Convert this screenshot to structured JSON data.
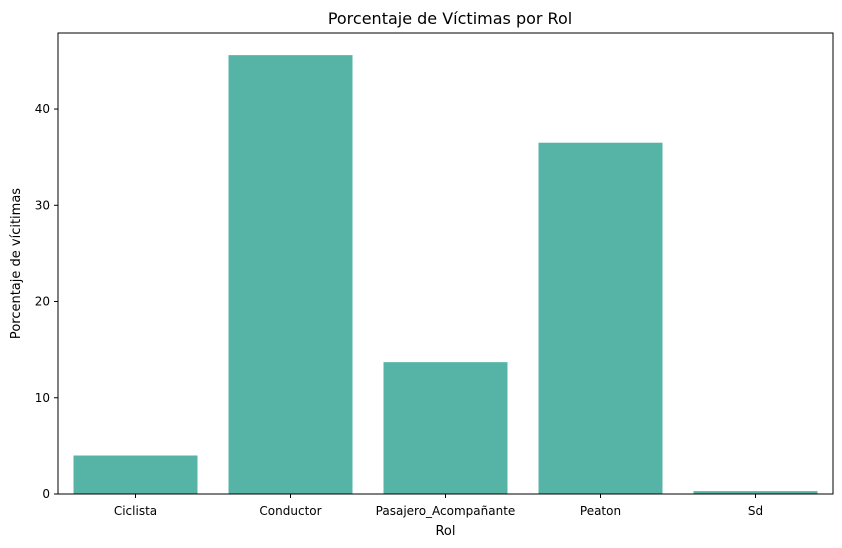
{
  "chart_data": {
    "type": "bar",
    "title": "Porcentaje de Víctimas por Rol",
    "xlabel": "Rol",
    "ylabel": "Porcentaje de vícitimas",
    "categories": [
      "Ciclista",
      "Conductor",
      "Pasajero_Acompañante",
      "Peaton",
      "Sd"
    ],
    "values": [
      4.0,
      45.6,
      13.7,
      36.5,
      0.3
    ],
    "ylim": [
      0,
      47.9
    ],
    "yticks": [
      0,
      10,
      20,
      30,
      40
    ],
    "bar_color": "#56b4a7",
    "grid": false,
    "legend": "none"
  }
}
